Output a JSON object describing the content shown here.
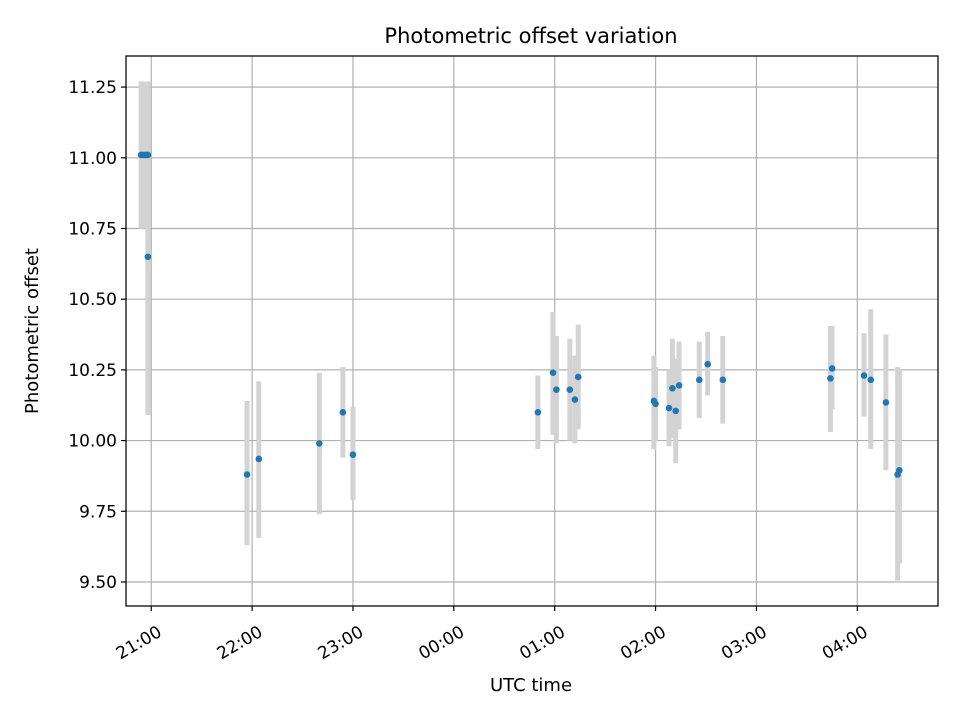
{
  "chart_data": {
    "type": "scatter",
    "title": "Photometric offset variation",
    "xlabel": "UTC time",
    "ylabel": "Photometric offset",
    "grid": true,
    "legend": "none",
    "xlim": [
      "2000-01-01 20:45",
      "2000-01-02 04:48"
    ],
    "ylim": [
      9.415,
      11.36
    ],
    "x_ticks": [
      {
        "t": "2000-01-01 21:00",
        "label": "21:00"
      },
      {
        "t": "2000-01-01 22:00",
        "label": "22:00"
      },
      {
        "t": "2000-01-01 23:00",
        "label": "23:00"
      },
      {
        "t": "2000-01-02 00:00",
        "label": "00:00"
      },
      {
        "t": "2000-01-02 01:00",
        "label": "01:00"
      },
      {
        "t": "2000-01-02 02:00",
        "label": "02:00"
      },
      {
        "t": "2000-01-02 03:00",
        "label": "03:00"
      },
      {
        "t": "2000-01-02 04:00",
        "label": "04:00"
      }
    ],
    "y_ticks": [
      {
        "v": 9.5,
        "label": "9.50"
      },
      {
        "v": 9.75,
        "label": "9.75"
      },
      {
        "v": 10.0,
        "label": "10.00"
      },
      {
        "v": 10.25,
        "label": "10.25"
      },
      {
        "v": 10.5,
        "label": "10.50"
      },
      {
        "v": 10.75,
        "label": "10.75"
      },
      {
        "v": 11.0,
        "label": "11.00"
      },
      {
        "v": 11.25,
        "label": "11.25"
      }
    ],
    "series": [
      {
        "marker_color": "#1f77b4",
        "errorbar_color": "#d3d3d3",
        "points": [
          {
            "t": "2000-01-01 20:54",
            "y": 11.01,
            "lo": 10.75,
            "hi": 11.27
          },
          {
            "t": "2000-01-01 20:55",
            "y": 11.01,
            "lo": 10.75,
            "hi": 11.27
          },
          {
            "t": "2000-01-01 20:56",
            "y": 11.01,
            "lo": 10.75,
            "hi": 11.27
          },
          {
            "t": "2000-01-01 20:57",
            "y": 11.01,
            "lo": 10.75,
            "hi": 11.27
          },
          {
            "t": "2000-01-01 20:58",
            "y": 11.01,
            "lo": 10.75,
            "hi": 11.27
          },
          {
            "t": "2000-01-01 20:58",
            "y": 10.65,
            "lo": 10.09,
            "hi": 11.22
          },
          {
            "t": "2000-01-01 21:57",
            "y": 9.88,
            "lo": 9.63,
            "hi": 10.14
          },
          {
            "t": "2000-01-01 22:04",
            "y": 9.935,
            "lo": 9.655,
            "hi": 10.21
          },
          {
            "t": "2000-01-01 22:40",
            "y": 9.99,
            "lo": 9.74,
            "hi": 10.24
          },
          {
            "t": "2000-01-01 22:54",
            "y": 10.1,
            "lo": 9.94,
            "hi": 10.26
          },
          {
            "t": "2000-01-01 23:00",
            "y": 9.95,
            "lo": 9.79,
            "hi": 10.12
          },
          {
            "t": "2000-01-02 00:50",
            "y": 10.1,
            "lo": 9.97,
            "hi": 10.23
          },
          {
            "t": "2000-01-02 00:59",
            "y": 10.24,
            "lo": 10.02,
            "hi": 10.455
          },
          {
            "t": "2000-01-02 01:01",
            "y": 10.18,
            "lo": 9.99,
            "hi": 10.37
          },
          {
            "t": "2000-01-02 01:09",
            "y": 10.18,
            "lo": 10.0,
            "hi": 10.36
          },
          {
            "t": "2000-01-02 01:12",
            "y": 10.145,
            "lo": 9.99,
            "hi": 10.3
          },
          {
            "t": "2000-01-02 01:14",
            "y": 10.225,
            "lo": 10.04,
            "hi": 10.41
          },
          {
            "t": "2000-01-02 01:59",
            "y": 10.14,
            "lo": 9.97,
            "hi": 10.3
          },
          {
            "t": "2000-01-02 02:00",
            "y": 10.13,
            "lo": 10.0,
            "hi": 10.26
          },
          {
            "t": "2000-01-02 02:08",
            "y": 10.115,
            "lo": 9.98,
            "hi": 10.25
          },
          {
            "t": "2000-01-02 02:10",
            "y": 10.185,
            "lo": 10.01,
            "hi": 10.36
          },
          {
            "t": "2000-01-02 02:12",
            "y": 10.105,
            "lo": 9.92,
            "hi": 10.29
          },
          {
            "t": "2000-01-02 02:14",
            "y": 10.195,
            "lo": 10.04,
            "hi": 10.35
          },
          {
            "t": "2000-01-02 02:26",
            "y": 10.215,
            "lo": 10.08,
            "hi": 10.35
          },
          {
            "t": "2000-01-02 02:31",
            "y": 10.27,
            "lo": 10.16,
            "hi": 10.385
          },
          {
            "t": "2000-01-02 02:40",
            "y": 10.215,
            "lo": 10.06,
            "hi": 10.37
          },
          {
            "t": "2000-01-02 03:44",
            "y": 10.22,
            "lo": 10.03,
            "hi": 10.405
          },
          {
            "t": "2000-01-02 03:45",
            "y": 10.255,
            "lo": 10.11,
            "hi": 10.405
          },
          {
            "t": "2000-01-02 04:04",
            "y": 10.23,
            "lo": 10.085,
            "hi": 10.38
          },
          {
            "t": "2000-01-02 04:08",
            "y": 10.215,
            "lo": 9.97,
            "hi": 10.465
          },
          {
            "t": "2000-01-02 04:17",
            "y": 10.135,
            "lo": 9.895,
            "hi": 10.375
          },
          {
            "t": "2000-01-02 04:24",
            "y": 9.88,
            "lo": 9.505,
            "hi": 10.26
          },
          {
            "t": "2000-01-02 04:25",
            "y": 9.895,
            "lo": 9.565,
            "hi": 10.25
          }
        ]
      }
    ]
  }
}
